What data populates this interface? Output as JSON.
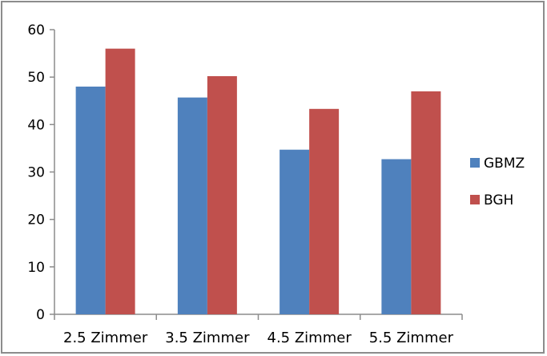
{
  "chart_data": {
    "type": "bar",
    "categories": [
      "2.5 Zimmer",
      "3.5 Zimmer",
      "4.5 Zimmer",
      "5.5 Zimmer"
    ],
    "series": [
      {
        "name": "GBMZ",
        "values": [
          48,
          45.7,
          34.7,
          32.7
        ],
        "color": "#4f81bd"
      },
      {
        "name": "BGH",
        "values": [
          56,
          50.2,
          43.3,
          47
        ],
        "color": "#c0504d"
      }
    ],
    "yticks": [
      "0",
      "10",
      "20",
      "30",
      "40",
      "50",
      "60"
    ],
    "ylim": [
      0,
      60
    ],
    "grid": false,
    "legend": "right",
    "xlabel": "",
    "ylabel": "",
    "title": ""
  }
}
